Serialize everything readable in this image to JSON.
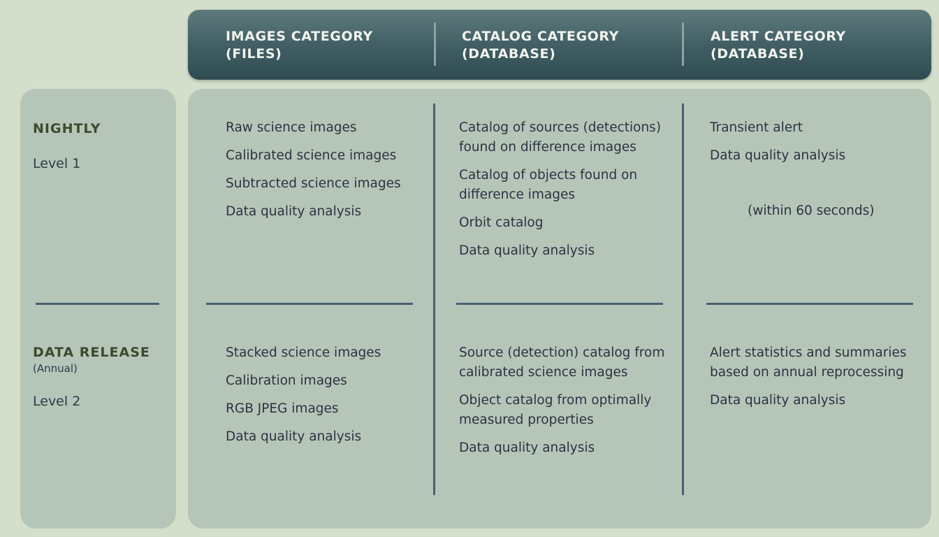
{
  "header": {
    "columns": [
      {
        "line1": "IMAGES CATEGORY",
        "line2": "(FILES)"
      },
      {
        "line1": "CATALOG CATEGORY",
        "line2": "(DATABASE)"
      },
      {
        "line1": "ALERT CATEGORY",
        "line2": "(DATABASE)"
      }
    ]
  },
  "rows": {
    "nightly": {
      "title": "NIGHTLY",
      "level": "Level 1"
    },
    "data_release": {
      "title": "DATA RELEASE",
      "subtitle": "(Annual)",
      "level": "Level 2"
    }
  },
  "cells": {
    "nightly_images": [
      "Raw science images",
      "Calibrated science images",
      "Subtracted science images",
      "Data quality analysis"
    ],
    "nightly_catalog": [
      "Catalog of sources (detections)",
      "found on difference images",
      "Catalog of objects found on",
      "difference images",
      "Orbit catalog",
      "Data quality analysis"
    ],
    "nightly_alert": [
      "Transient alert",
      "Data quality analysis"
    ],
    "nightly_alert_note": "(within 60 seconds)",
    "release_images": [
      "Stacked science images",
      "Calibration images",
      "RGB JPEG images",
      "Data quality analysis"
    ],
    "release_catalog": [
      "Source (detection) catalog from",
      "calibrated science images",
      "Object catalog from optimally",
      "measured properties",
      "Data quality analysis"
    ],
    "release_alert": [
      "Alert statistics and summaries",
      "based on annual reprocessing",
      "Data quality analysis"
    ]
  }
}
